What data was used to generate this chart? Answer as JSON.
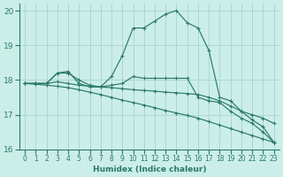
{
  "xlabel": "Humidex (Indice chaleur)",
  "xlim": [
    -0.5,
    23.5
  ],
  "ylim": [
    16,
    20.2
  ],
  "yticks": [
    16,
    17,
    18,
    19,
    20
  ],
  "xticks": [
    0,
    1,
    2,
    3,
    4,
    5,
    6,
    7,
    8,
    9,
    10,
    11,
    12,
    13,
    14,
    15,
    16,
    17,
    18,
    19,
    20,
    21,
    22,
    23
  ],
  "bg_color": "#cceee8",
  "grid_color": "#aad8d2",
  "line_color": "#2a7a6a",
  "lines": [
    {
      "x": [
        0,
        1,
        2,
        3,
        4,
        5,
        6,
        7,
        8,
        9,
        10,
        11,
        12,
        13,
        14,
        15,
        16,
        17,
        18,
        19,
        20,
        21,
        22,
        23
      ],
      "y": [
        17.9,
        17.9,
        17.9,
        18.2,
        18.25,
        17.9,
        17.8,
        17.8,
        18.1,
        18.7,
        19.5,
        19.5,
        19.7,
        19.9,
        20.0,
        19.65,
        19.5,
        18.85,
        17.5,
        17.4,
        17.1,
        16.85,
        16.65,
        16.2
      ]
    },
    {
      "x": [
        0,
        1,
        2,
        3,
        4,
        5,
        6,
        7,
        8,
        9,
        10,
        11,
        12,
        13,
        14,
        15,
        16,
        17,
        18,
        19,
        20,
        21,
        22,
        23
      ],
      "y": [
        17.9,
        17.9,
        17.9,
        18.2,
        18.2,
        18.0,
        17.85,
        17.8,
        17.85,
        17.9,
        18.1,
        18.05,
        18.05,
        18.05,
        18.05,
        18.05,
        17.5,
        17.4,
        17.35,
        17.1,
        16.9,
        16.75,
        16.5,
        16.2
      ]
    },
    {
      "x": [
        0,
        1,
        2,
        3,
        4,
        5,
        6,
        7,
        8,
        9,
        10,
        11,
        12,
        13,
        14,
        15,
        16,
        17,
        18,
        19,
        20,
        21,
        22,
        23
      ],
      "y": [
        17.9,
        17.9,
        17.9,
        17.95,
        17.9,
        17.85,
        17.82,
        17.8,
        17.78,
        17.75,
        17.72,
        17.7,
        17.68,
        17.65,
        17.63,
        17.61,
        17.58,
        17.5,
        17.4,
        17.25,
        17.1,
        17.0,
        16.9,
        16.75
      ]
    },
    {
      "x": [
        0,
        1,
        2,
        3,
        4,
        5,
        6,
        7,
        8,
        9,
        10,
        11,
        12,
        13,
        14,
        15,
        16,
        17,
        18,
        19,
        20,
        21,
        22,
        23
      ],
      "y": [
        17.9,
        17.88,
        17.85,
        17.82,
        17.78,
        17.72,
        17.65,
        17.58,
        17.5,
        17.42,
        17.35,
        17.28,
        17.2,
        17.12,
        17.05,
        16.98,
        16.9,
        16.8,
        16.7,
        16.6,
        16.5,
        16.4,
        16.3,
        16.2
      ]
    }
  ]
}
